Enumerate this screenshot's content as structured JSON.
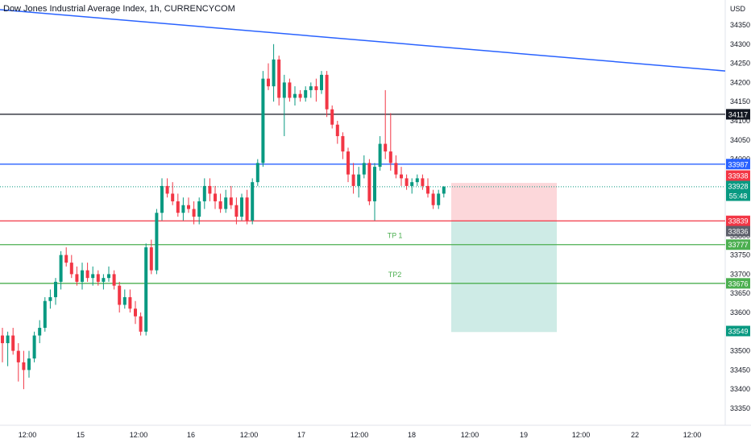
{
  "chart_data": {
    "type": "candlestick",
    "title": "Dow Jones Industrial Average Index, 1h, CURRENCYCOM",
    "currency": "USD",
    "ylim": [
      33320,
      34420
    ],
    "yticks": [
      34350,
      34300,
      34250,
      34200,
      34150,
      34100,
      34050,
      34000,
      33800,
      33750,
      33700,
      33650,
      33600,
      33500,
      33450,
      33400,
      33350
    ],
    "xticks": [
      "12:00",
      "15",
      "12:00",
      "16",
      "12:00",
      "17",
      "12:00",
      "18",
      "12:00",
      "19",
      "12:00",
      "22",
      "12:00"
    ],
    "candles": [
      [
        33540,
        33560,
        33470,
        33520
      ],
      [
        33520,
        33550,
        33460,
        33540
      ],
      [
        33540,
        33560,
        33490,
        33500
      ],
      [
        33500,
        33520,
        33420,
        33470
      ],
      [
        33470,
        33500,
        33400,
        33450
      ],
      [
        33450,
        33500,
        33430,
        33480
      ],
      [
        33480,
        33550,
        33470,
        33540
      ],
      [
        33540,
        33580,
        33520,
        33560
      ],
      [
        33560,
        33640,
        33550,
        33630
      ],
      [
        33630,
        33660,
        33610,
        33640
      ],
      [
        33640,
        33690,
        33620,
        33680
      ],
      [
        33680,
        33760,
        33660,
        33750
      ],
      [
        33750,
        33770,
        33720,
        33730
      ],
      [
        33730,
        33750,
        33690,
        33700
      ],
      [
        33700,
        33720,
        33670,
        33680
      ],
      [
        33680,
        33730,
        33660,
        33710
      ],
      [
        33710,
        33730,
        33680,
        33690
      ],
      [
        33690,
        33720,
        33670,
        33700
      ],
      [
        33700,
        33710,
        33670,
        33680
      ],
      [
        33680,
        33700,
        33660,
        33690
      ],
      [
        33690,
        33720,
        33680,
        33700
      ],
      [
        33700,
        33710,
        33660,
        33670
      ],
      [
        33670,
        33680,
        33600,
        33620
      ],
      [
        33620,
        33660,
        33610,
        33640
      ],
      [
        33640,
        33660,
        33600,
        33610
      ],
      [
        33610,
        33630,
        33570,
        33590
      ],
      [
        33590,
        33600,
        33540,
        33550
      ],
      [
        33550,
        33780,
        33540,
        33770
      ],
      [
        33770,
        33790,
        33700,
        33710
      ],
      [
        33710,
        33870,
        33700,
        33860
      ],
      [
        33860,
        33950,
        33840,
        33930
      ],
      [
        33930,
        33950,
        33900,
        33910
      ],
      [
        33910,
        33940,
        33880,
        33890
      ],
      [
        33890,
        33910,
        33850,
        33860
      ],
      [
        33860,
        33900,
        33840,
        33880
      ],
      [
        33880,
        33900,
        33860,
        33870
      ],
      [
        33870,
        33890,
        33830,
        33850
      ],
      [
        33850,
        33900,
        33830,
        33890
      ],
      [
        33890,
        33950,
        33870,
        33930
      ],
      [
        33930,
        33950,
        33890,
        33910
      ],
      [
        33910,
        33930,
        33870,
        33890
      ],
      [
        33890,
        33910,
        33860,
        33870
      ],
      [
        33870,
        33920,
        33860,
        33900
      ],
      [
        33900,
        33930,
        33870,
        33880
      ],
      [
        33880,
        33900,
        33830,
        33850
      ],
      [
        33850,
        33910,
        33840,
        33900
      ],
      [
        33900,
        33920,
        33830,
        33840
      ],
      [
        33840,
        33950,
        33830,
        33940
      ],
      [
        33940,
        34000,
        33930,
        33990
      ],
      [
        33990,
        34230,
        33980,
        34210
      ],
      [
        34210,
        34250,
        34180,
        34190
      ],
      [
        34190,
        34300,
        34150,
        34260
      ],
      [
        34260,
        34270,
        34140,
        34160
      ],
      [
        34160,
        34220,
        34060,
        34200
      ],
      [
        34200,
        34210,
        34150,
        34160
      ],
      [
        34160,
        34190,
        34140,
        34170
      ],
      [
        34170,
        34180,
        34150,
        34160
      ],
      [
        34160,
        34190,
        34150,
        34180
      ],
      [
        34180,
        34200,
        34160,
        34190
      ],
      [
        34190,
        34210,
        34150,
        34180
      ],
      [
        34180,
        34230,
        34170,
        34220
      ],
      [
        34220,
        34230,
        34110,
        34130
      ],
      [
        34130,
        34140,
        34080,
        34090
      ],
      [
        34090,
        34100,
        34040,
        34060
      ],
      [
        34060,
        34070,
        34000,
        34020
      ],
      [
        34020,
        34030,
        33940,
        33960
      ],
      [
        33960,
        33990,
        33910,
        33930
      ],
      [
        33930,
        33980,
        33900,
        33960
      ],
      [
        33960,
        34010,
        33950,
        33990
      ],
      [
        33990,
        34000,
        33880,
        33890
      ],
      [
        33890,
        33990,
        33840,
        33980
      ],
      [
        33980,
        34060,
        33970,
        34040
      ],
      [
        34040,
        34180,
        34000,
        34020
      ],
      [
        34020,
        34120,
        33970,
        33990
      ],
      [
        33990,
        34010,
        33950,
        33960
      ],
      [
        33960,
        33980,
        33930,
        33950
      ],
      [
        33950,
        33960,
        33920,
        33930
      ],
      [
        33930,
        33950,
        33910,
        33940
      ],
      [
        33940,
        33960,
        33930,
        33950
      ],
      [
        33950,
        33960,
        33920,
        33930
      ],
      [
        33930,
        33950,
        33900,
        33910
      ],
      [
        33910,
        33920,
        33870,
        33880
      ],
      [
        33880,
        33920,
        33870,
        33910
      ],
      [
        33910,
        33930,
        33900,
        33928
      ]
    ],
    "horizontal_lines": [
      {
        "label": "34117",
        "price": 34117,
        "color": "#131722",
        "label_bg": "#131722"
      },
      {
        "label": "33987",
        "price": 33987,
        "color": "#2962ff",
        "label_bg": "#2962ff"
      },
      {
        "label": "33839",
        "price": 33839,
        "color": "#f23645",
        "label_bg": "#f23645"
      },
      {
        "label": "33777",
        "price": 33777,
        "color": "#4caf50",
        "label_bg": "#4caf50"
      },
      {
        "label": "33676",
        "price": 33676,
        "color": "#4caf50",
        "label_bg": "#4caf50"
      }
    ],
    "price_labels": [
      {
        "label": "33938",
        "price": 33938,
        "bg": "#f23645"
      },
      {
        "label": "33928",
        "price": 33928,
        "bg": "#089981"
      },
      {
        "label": "55:48",
        "price": 33928,
        "bg": "#089981"
      },
      {
        "label": "33836",
        "price": 33836,
        "bg": "#5d606b"
      },
      {
        "label": "33549",
        "price": 33549,
        "bg": "#089981"
      }
    ],
    "trendline": {
      "start_price": 34390,
      "end_price": 34230,
      "color": "#2962ff"
    },
    "position_box": {
      "entry": 33839,
      "stop": 33938,
      "target": 33549
    },
    "annotations": [
      {
        "text": "TP 1",
        "price": 33777,
        "color": "#4caf50"
      },
      {
        "text": "TP2",
        "price": 33676,
        "color": "#4caf50"
      }
    ]
  }
}
